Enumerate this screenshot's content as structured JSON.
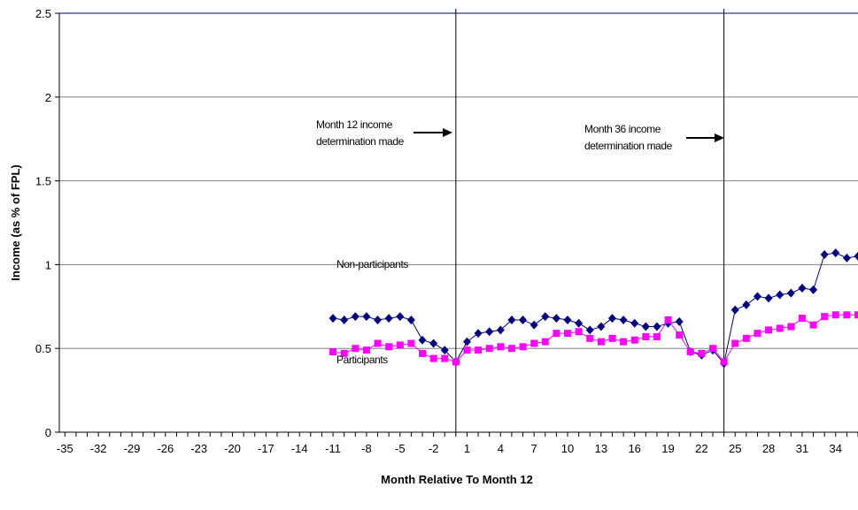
{
  "chart_data": {
    "type": "line",
    "title": "",
    "xlabel": "Month Relative To Month 12",
    "ylabel": "Income (as % of FPL)",
    "xlim": [
      -35,
      36
    ],
    "ylim": [
      0,
      2.5
    ],
    "x_tick_labels": [
      "-35",
      "-32",
      "-29",
      "-26",
      "-23",
      "-20",
      "-17",
      "-14",
      "-11",
      "-8",
      "-5",
      "-2",
      "1",
      "4",
      "7",
      "10",
      "13",
      "16",
      "19",
      "22",
      "25",
      "28",
      "31",
      "34"
    ],
    "y_tick_labels": [
      "0",
      "0.5",
      "1",
      "1.5",
      "2",
      "2.5"
    ],
    "y_ticks": [
      0,
      0.5,
      1,
      1.5,
      2,
      2.5
    ],
    "grid": "horizontal",
    "legend": "none",
    "vertical_lines_at_x": [
      0,
      24
    ],
    "x": [
      -11,
      -10,
      -9,
      -8,
      -7,
      -6,
      -5,
      -4,
      -3,
      -2,
      -1,
      0,
      1,
      2,
      3,
      4,
      5,
      6,
      7,
      8,
      9,
      10,
      11,
      12,
      13,
      14,
      15,
      16,
      17,
      18,
      19,
      20,
      21,
      22,
      23,
      24,
      25,
      26,
      27,
      28,
      29,
      30,
      31,
      32,
      33,
      34,
      35,
      36
    ],
    "series": [
      {
        "name": "Non-participants",
        "color": "#000080",
        "marker": "diamond",
        "values": [
          0.68,
          0.67,
          0.69,
          0.69,
          0.67,
          0.68,
          0.69,
          0.67,
          0.55,
          0.53,
          0.49,
          0.42,
          0.54,
          0.59,
          0.6,
          0.61,
          0.67,
          0.67,
          0.64,
          0.69,
          0.68,
          0.67,
          0.65,
          0.61,
          0.63,
          0.68,
          0.67,
          0.65,
          0.63,
          0.63,
          0.65,
          0.66,
          0.48,
          0.46,
          0.49,
          0.41,
          0.73,
          0.76,
          0.81,
          0.8,
          0.82,
          0.83,
          0.86,
          0.85,
          1.06,
          1.07,
          1.04,
          1.05
        ]
      },
      {
        "name": "Participants",
        "color": "#FF00FF",
        "marker": "square",
        "values": [
          0.48,
          0.47,
          0.5,
          0.49,
          0.53,
          0.51,
          0.52,
          0.53,
          0.47,
          0.44,
          0.44,
          0.42,
          0.49,
          0.49,
          0.5,
          0.51,
          0.5,
          0.51,
          0.53,
          0.54,
          0.59,
          0.59,
          0.6,
          0.56,
          0.54,
          0.56,
          0.54,
          0.55,
          0.57,
          0.57,
          0.67,
          0.58,
          0.48,
          0.47,
          0.5,
          0.42,
          0.53,
          0.56,
          0.59,
          0.61,
          0.62,
          0.63,
          0.68,
          0.64,
          0.69,
          0.7,
          0.7,
          0.7
        ]
      }
    ],
    "annotations": [
      {
        "id": "month12",
        "lines": [
          "Month 12 income",
          "determination made"
        ]
      },
      {
        "id": "month36",
        "lines": [
          "Month 36 income",
          "determination made"
        ]
      }
    ]
  }
}
